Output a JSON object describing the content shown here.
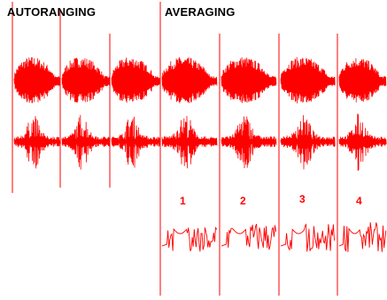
{
  "headings": {
    "autoranging": "AUTORANGING",
    "averaging": "AVERAGING"
  },
  "average_labels": [
    "1",
    "2",
    "3",
    "4"
  ],
  "colors": {
    "signal": "#ff0000",
    "text": "#000000",
    "background": "#ffffff"
  }
}
